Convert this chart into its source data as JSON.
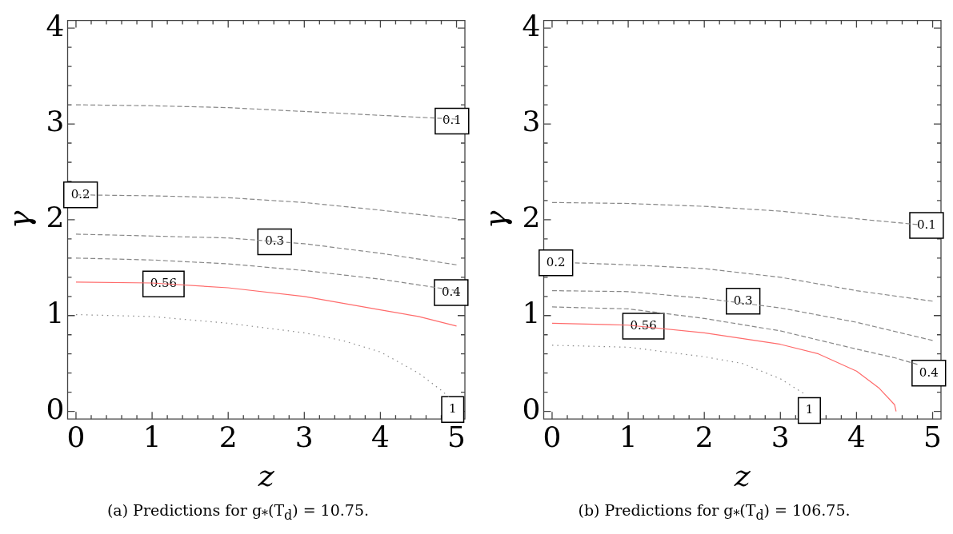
{
  "chart_data": [
    {
      "type": "line",
      "title": "(a) Predictions for g$_{*}$(T$_{d}$) = 10.75.",
      "xlabel": "z",
      "ylabel": "γ",
      "marker": "none",
      "xlim": [
        -0.11,
        5.11
      ],
      "ylim": [
        -0.08,
        4.08
      ],
      "xticks": [
        0,
        {
          "value": 0.2,
          "label": null
        },
        {
          "value": 0.4,
          "label": null
        },
        {
          "value": 0.6,
          "label": null
        },
        {
          "value": 0.8,
          "label": null
        },
        1,
        {
          "value": 1.2,
          "label": null
        },
        {
          "value": 1.4,
          "label": null
        },
        {
          "value": 1.6,
          "label": null
        },
        {
          "value": 1.8,
          "label": null
        },
        2,
        {
          "value": 2.2,
          "label": null
        },
        {
          "value": 2.4,
          "label": null
        },
        {
          "value": 2.6,
          "label": null
        },
        {
          "value": 2.8,
          "label": null
        },
        3,
        {
          "value": 3.2,
          "label": null
        },
        {
          "value": 3.4,
          "label": null
        },
        {
          "value": 3.6,
          "label": null
        },
        {
          "value": 3.8,
          "label": null
        },
        4,
        {
          "value": 4.2,
          "label": null
        },
        {
          "value": 4.4,
          "label": null
        },
        {
          "value": 4.6,
          "label": null
        },
        {
          "value": 4.8,
          "label": null
        },
        5
      ],
      "yticks": [
        0,
        {
          "value": 0.2,
          "label": null
        },
        {
          "value": 0.4,
          "label": null
        },
        {
          "value": 0.6,
          "label": null
        },
        {
          "value": 0.8,
          "label": null
        },
        1,
        {
          "value": 1.2,
          "label": null
        },
        {
          "value": 1.4,
          "label": null
        },
        {
          "value": 1.6,
          "label": null
        },
        {
          "value": 1.8,
          "label": null
        },
        2,
        {
          "value": 2.2,
          "label": null
        },
        {
          "value": 2.4,
          "label": null
        },
        {
          "value": 2.6,
          "label": null
        },
        {
          "value": 2.8,
          "label": null
        },
        3,
        {
          "value": 3.2,
          "label": null
        },
        {
          "value": 3.4,
          "label": null
        },
        {
          "value": 3.6,
          "label": null
        },
        {
          "value": 3.8,
          "label": null
        },
        4
      ],
      "series": [
        {
          "color": "#888888",
          "line_style": "dashed",
          "x": [
            0,
            1,
            2,
            3,
            4,
            5
          ],
          "values": [
            3.2,
            3.19,
            3.17,
            3.13,
            3.09,
            3.05
          ]
        },
        {
          "color": "#888888",
          "line_style": "dashed",
          "x": [
            0,
            1,
            2,
            3,
            4,
            5
          ],
          "values": [
            2.26,
            2.25,
            2.23,
            2.18,
            2.1,
            2.01
          ]
        },
        {
          "color": "#888888",
          "line_style": "dashed",
          "x": [
            0,
            1,
            2,
            3,
            4,
            5
          ],
          "values": [
            1.85,
            1.83,
            1.81,
            1.75,
            1.65,
            1.53
          ]
        },
        {
          "color": "#888888",
          "line_style": "dashed",
          "x": [
            0,
            1,
            2,
            3,
            4,
            5
          ],
          "values": [
            1.6,
            1.58,
            1.54,
            1.47,
            1.38,
            1.26
          ]
        },
        {
          "color": "#ff6b6b",
          "line_style": "solid",
          "x": [
            0,
            1,
            2,
            3,
            4,
            4.5,
            5
          ],
          "values": [
            1.35,
            1.34,
            1.29,
            1.2,
            1.06,
            0.99,
            0.89
          ]
        },
        {
          "color": "#888888",
          "line_style": "dotted",
          "x": [
            0,
            1,
            2,
            3,
            3.5,
            4,
            4.5,
            4.8,
            4.9
          ],
          "values": [
            1.01,
            0.99,
            0.92,
            0.82,
            0.74,
            0.62,
            0.4,
            0.22,
            0.15
          ]
        }
      ],
      "annotations": [
        {
          "text": "0.1",
          "x": 4.94,
          "y": 3.03
        },
        {
          "text": "0.2",
          "x": 0.06,
          "y": 2.26
        },
        {
          "text": "0.3",
          "x": 2.61,
          "y": 1.77
        },
        {
          "text": "0.4",
          "x": 4.93,
          "y": 1.24
        },
        {
          "text": "0.56",
          "x": 1.15,
          "y": 1.33
        },
        {
          "text": "1",
          "x": 4.95,
          "y": 0.02
        }
      ]
    },
    {
      "type": "line",
      "title": "(b) Predictions for g$_{*}$(T$_{d}$) = 106.75.",
      "xlabel": "z",
      "ylabel": "γ",
      "marker": "none",
      "xlim": [
        -0.11,
        5.11
      ],
      "ylim": [
        -0.08,
        4.08
      ],
      "xticks": [
        0,
        {
          "value": 0.2,
          "label": null
        },
        {
          "value": 0.4,
          "label": null
        },
        {
          "value": 0.6,
          "label": null
        },
        {
          "value": 0.8,
          "label": null
        },
        1,
        {
          "value": 1.2,
          "label": null
        },
        {
          "value": 1.4,
          "label": null
        },
        {
          "value": 1.6,
          "label": null
        },
        {
          "value": 1.8,
          "label": null
        },
        2,
        {
          "value": 2.2,
          "label": null
        },
        {
          "value": 2.4,
          "label": null
        },
        {
          "value": 2.6,
          "label": null
        },
        {
          "value": 2.8,
          "label": null
        },
        3,
        {
          "value": 3.2,
          "label": null
        },
        {
          "value": 3.4,
          "label": null
        },
        {
          "value": 3.6,
          "label": null
        },
        {
          "value": 3.8,
          "label": null
        },
        4,
        {
          "value": 4.2,
          "label": null
        },
        {
          "value": 4.4,
          "label": null
        },
        {
          "value": 4.6,
          "label": null
        },
        {
          "value": 4.8,
          "label": null
        },
        5
      ],
      "yticks": [
        0,
        {
          "value": 0.2,
          "label": null
        },
        {
          "value": 0.4,
          "label": null
        },
        {
          "value": 0.6,
          "label": null
        },
        {
          "value": 0.8,
          "label": null
        },
        1,
        {
          "value": 1.2,
          "label": null
        },
        {
          "value": 1.4,
          "label": null
        },
        {
          "value": 1.6,
          "label": null
        },
        {
          "value": 1.8,
          "label": null
        },
        2,
        {
          "value": 2.2,
          "label": null
        },
        {
          "value": 2.4,
          "label": null
        },
        {
          "value": 2.6,
          "label": null
        },
        {
          "value": 2.8,
          "label": null
        },
        3,
        {
          "value": 3.2,
          "label": null
        },
        {
          "value": 3.4,
          "label": null
        },
        {
          "value": 3.6,
          "label": null
        },
        {
          "value": 3.8,
          "label": null
        },
        4
      ],
      "series": [
        {
          "color": "#888888",
          "line_style": "dashed",
          "x": [
            0,
            1,
            2,
            3,
            4,
            4.8
          ],
          "values": [
            2.18,
            2.17,
            2.14,
            2.09,
            2.01,
            1.95
          ]
        },
        {
          "color": "#888888",
          "line_style": "dashed",
          "x": [
            0.3,
            1,
            2,
            3,
            4,
            5
          ],
          "values": [
            1.55,
            1.53,
            1.49,
            1.4,
            1.26,
            1.15
          ]
        },
        {
          "color": "#888888",
          "line_style": "dashed",
          "x": [
            0,
            1,
            2,
            3,
            4,
            5
          ],
          "values": [
            1.26,
            1.25,
            1.18,
            1.08,
            0.93,
            0.74
          ]
        },
        {
          "color": "#888888",
          "line_style": "dashed",
          "x": [
            0,
            1,
            2,
            3,
            4,
            4.5,
            4.8
          ],
          "values": [
            1.09,
            1.07,
            0.97,
            0.84,
            0.65,
            0.56,
            0.49
          ]
        },
        {
          "color": "#ff6b6b",
          "line_style": "solid",
          "x": [
            0,
            1,
            2,
            3,
            3.5,
            4,
            4.3,
            4.5,
            4.52
          ],
          "values": [
            0.92,
            0.9,
            0.82,
            0.7,
            0.6,
            0.42,
            0.24,
            0.07,
            0
          ]
        },
        {
          "color": "#888888",
          "line_style": "dotted",
          "x": [
            0,
            1,
            2,
            2.5,
            3,
            3.3
          ],
          "values": [
            0.69,
            0.67,
            0.57,
            0.5,
            0.34,
            0.19
          ]
        }
      ],
      "annotations": [
        {
          "text": "0.1",
          "x": 4.92,
          "y": 1.94
        },
        {
          "text": "0.2",
          "x": 0.05,
          "y": 1.55
        },
        {
          "text": "0.3",
          "x": 2.51,
          "y": 1.15
        },
        {
          "text": "0.4",
          "x": 4.95,
          "y": 0.4
        },
        {
          "text": "0.56",
          "x": 1.2,
          "y": 0.89
        },
        {
          "text": "1",
          "x": 3.38,
          "y": 0.01
        }
      ]
    }
  ]
}
